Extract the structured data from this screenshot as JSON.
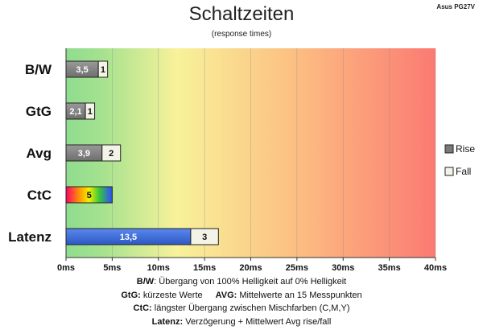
{
  "title": "Schaltzeiten",
  "subtitle": "(response times)",
  "brand": "Asus PG27V",
  "chart_data": {
    "type": "bar",
    "orientation": "horizontal",
    "stacked": true,
    "title": "Schaltzeiten",
    "subtitle": "(response times)",
    "categories": [
      "B/W",
      "GtG",
      "Avg",
      "CtC",
      "Latenz"
    ],
    "series": [
      {
        "name": "Rise",
        "values": [
          3.5,
          2.1,
          3.9,
          5,
          13.5
        ],
        "labels": [
          "3,5",
          "2,1",
          "3,9",
          "5",
          "13,5"
        ]
      },
      {
        "name": "Fall",
        "values": [
          1,
          1,
          2,
          null,
          3
        ],
        "labels": [
          "1",
          "1",
          "2",
          "",
          "3"
        ]
      }
    ],
    "xlim": [
      0,
      40
    ],
    "xticks": [
      0,
      5,
      10,
      15,
      20,
      25,
      30,
      35,
      40
    ],
    "xtick_labels": [
      "0ms",
      "5ms",
      "10ms",
      "15ms",
      "20ms",
      "25ms",
      "30ms",
      "35ms",
      "40ms"
    ],
    "background": "gradient green-yellow-red",
    "grid": true,
    "legend_position": "right",
    "colors": {
      "rise": "#808080",
      "fall": "#f3f3e8",
      "latenz": "#3f6fd8",
      "bg_green": "#8fdc8f",
      "bg_yellow": "#f8f29a",
      "bg_red": "#fb7a72"
    }
  },
  "footer": {
    "line1_key": "B/W",
    "line1_text": ":  Übergang von 100% Helligkeit auf 0% Helligkeit",
    "line2a_key": "GtG:",
    "line2a_text": " kürzeste  Werte",
    "line2b_key": "AVG:",
    "line2b_text": " Mittelwerte  an 15 Messpunkten",
    "line3_key": "CtC:",
    "line3_text": " längster Übergang  zwischen Mischfarben (C,M,Y)",
    "line4_key": "Latenz:",
    "line4_text": " Verzögerung  + Mittelwert Avg rise/fall"
  }
}
